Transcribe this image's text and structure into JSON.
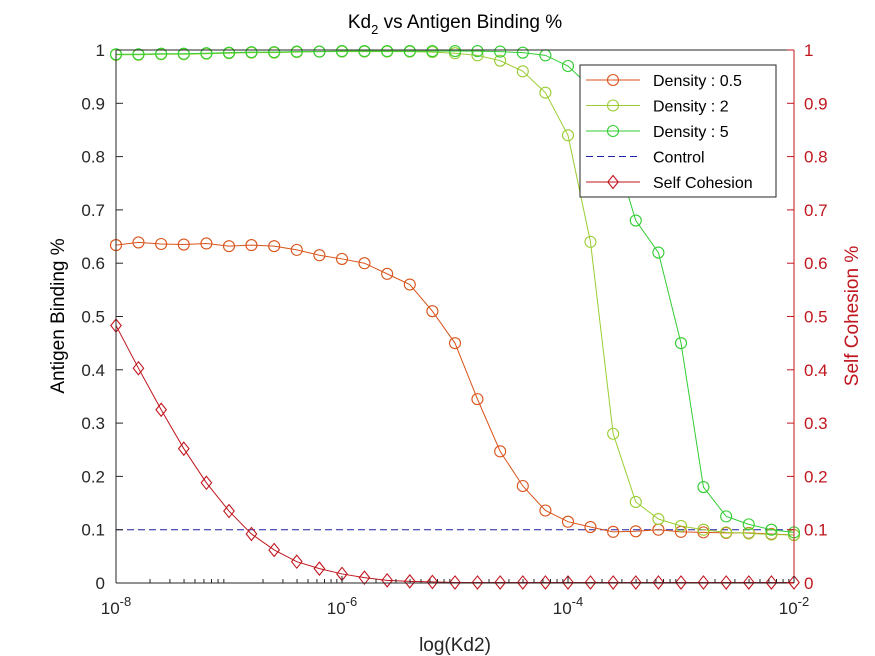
{
  "chart_data": {
    "type": "line",
    "title": "Kd",
    "title_sub": "2",
    "title_suffix": " vs Antigen Binding %",
    "xlabel": "log(Kd2)",
    "ylabel": "Antigen Binding %",
    "y2label": "Self Cohesion %",
    "xscale": "log",
    "xlim": [
      1e-08,
      0.01
    ],
    "ylim": [
      0,
      1
    ],
    "y2lim": [
      0,
      1
    ],
    "grid": false,
    "legend_position": "top-right",
    "x_ticks": [
      {
        "value": 1e-08,
        "base": "10",
        "exp": "-8"
      },
      {
        "value": 1e-06,
        "base": "10",
        "exp": "-6"
      },
      {
        "value": 0.0001,
        "base": "10",
        "exp": "-4"
      },
      {
        "value": 0.01,
        "base": "10",
        "exp": "-2"
      }
    ],
    "y_ticks": [
      "0",
      "0.1",
      "0.2",
      "0.3",
      "0.4",
      "0.5",
      "0.6",
      "0.7",
      "0.8",
      "0.9",
      "1"
    ],
    "y2_ticks": [
      "0",
      "0.1",
      "0.2",
      "0.3",
      "0.4",
      "0.5",
      "0.6",
      "0.7",
      "0.8",
      "0.9",
      "1"
    ],
    "x": [
      1e-08,
      1.58e-08,
      2.51e-08,
      3.98e-08,
      6.31e-08,
      1e-07,
      1.58e-07,
      2.51e-07,
      3.98e-07,
      6.31e-07,
      1e-06,
      1.58e-06,
      2.51e-06,
      3.98e-06,
      6.31e-06,
      1e-05,
      1.58e-05,
      2.51e-05,
      3.98e-05,
      6.31e-05,
      0.0001,
      0.000158,
      0.000251,
      0.000398,
      0.000631,
      0.001,
      0.00158,
      0.00251,
      0.00398,
      0.00631,
      0.01
    ],
    "series": [
      {
        "name": "Density : 0.5",
        "axis": "left",
        "color": "#D95319",
        "marker": "circle",
        "line": "solid",
        "values": [
          0.634,
          0.639,
          0.636,
          0.635,
          0.637,
          0.632,
          0.634,
          0.632,
          0.625,
          0.615,
          0.608,
          0.6,
          0.58,
          0.56,
          0.51,
          0.45,
          0.345,
          0.247,
          0.182,
          0.136,
          0.115,
          0.105,
          0.096,
          0.097,
          0.1,
          0.096,
          0.095,
          0.094,
          0.094,
          0.092,
          0.09
        ]
      },
      {
        "name": "Density : 2",
        "axis": "left",
        "color": "#9ACD32",
        "marker": "circle",
        "line": "solid",
        "values": [
          0.991,
          0.991,
          0.992,
          0.992,
          0.993,
          0.994,
          0.995,
          0.995,
          0.996,
          0.997,
          0.997,
          0.997,
          0.997,
          0.997,
          0.996,
          0.994,
          0.99,
          0.98,
          0.96,
          0.92,
          0.84,
          0.64,
          0.28,
          0.152,
          0.12,
          0.107,
          0.1,
          0.095,
          0.093,
          0.091,
          0.09
        ]
      },
      {
        "name": "Density : 5",
        "axis": "left",
        "color": "#32CD32",
        "marker": "circle",
        "line": "solid",
        "values": [
          0.992,
          0.992,
          0.993,
          0.993,
          0.994,
          0.995,
          0.996,
          0.996,
          0.997,
          0.997,
          0.998,
          0.998,
          0.998,
          0.998,
          0.998,
          0.998,
          0.998,
          0.997,
          0.995,
          0.99,
          0.97,
          0.93,
          0.82,
          0.68,
          0.62,
          0.45,
          0.18,
          0.125,
          0.11,
          0.1,
          0.095
        ]
      },
      {
        "name": "Control",
        "axis": "left",
        "color": "#1F1FA8",
        "marker": "none",
        "line": "dashed",
        "x": [
          1e-08,
          0.01
        ],
        "values": [
          0.1,
          0.1
        ]
      },
      {
        "name": "Self Cohesion",
        "axis": "right",
        "color": "#C0161E",
        "marker": "diamond",
        "line": "solid",
        "values": [
          0.483,
          0.403,
          0.325,
          0.252,
          0.188,
          0.135,
          0.092,
          0.062,
          0.04,
          0.027,
          0.017,
          0.01,
          0.005,
          0.003,
          0.002,
          0.001,
          0.001,
          0.001,
          0.001,
          0.001,
          0.001,
          0.001,
          0.001,
          0.001,
          0.001,
          0.001,
          0.001,
          0.001,
          0.001,
          0.001,
          0.001
        ]
      }
    ]
  },
  "colors": {
    "left_axis": "#262626",
    "right_axis": "#C0161E"
  }
}
